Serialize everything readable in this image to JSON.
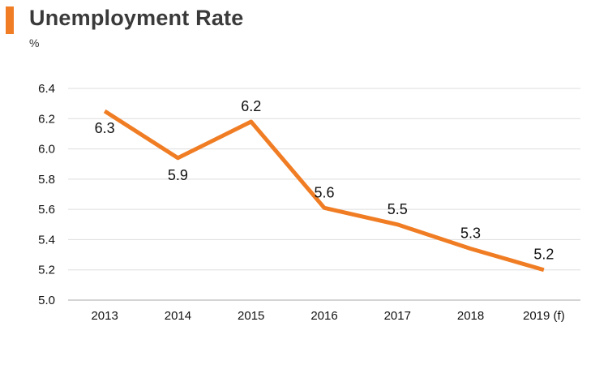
{
  "title": "Unemployment Rate",
  "unit": "%",
  "colors": {
    "accent": "#f07d24",
    "grid": "#dddddd",
    "axis": "#aaaaaa"
  },
  "chart_data": {
    "type": "line",
    "title": "Unemployment Rate",
    "xlabel": "",
    "ylabel": "%",
    "categories": [
      "2013",
      "2014",
      "2015",
      "2016",
      "2017",
      "2018",
      "2019 (f)"
    ],
    "series": [
      {
        "values": [
          6.25,
          5.94,
          6.18,
          5.61,
          5.5,
          5.34,
          5.2
        ],
        "labels": [
          "6.3",
          "5.9",
          "6.2",
          "5.6",
          "5.5",
          "5.3",
          "5.2"
        ]
      }
    ],
    "ylim": [
      5.0,
      6.4
    ],
    "yticks": [
      "5.0",
      "5.2",
      "5.4",
      "5.6",
      "5.8",
      "6.0",
      "6.2",
      "6.4"
    ],
    "grid": true,
    "legend": "none"
  }
}
